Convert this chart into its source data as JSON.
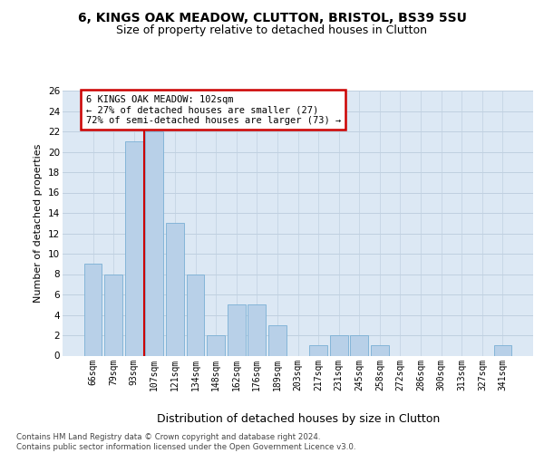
{
  "title1": "6, KINGS OAK MEADOW, CLUTTON, BRISTOL, BS39 5SU",
  "title2": "Size of property relative to detached houses in Clutton",
  "xlabel": "Distribution of detached houses by size in Clutton",
  "ylabel": "Number of detached properties",
  "categories": [
    "66sqm",
    "79sqm",
    "93sqm",
    "107sqm",
    "121sqm",
    "134sqm",
    "148sqm",
    "162sqm",
    "176sqm",
    "189sqm",
    "203sqm",
    "217sqm",
    "231sqm",
    "245sqm",
    "258sqm",
    "272sqm",
    "286sqm",
    "300sqm",
    "313sqm",
    "327sqm",
    "341sqm"
  ],
  "values": [
    9,
    8,
    21,
    22,
    13,
    8,
    2,
    5,
    5,
    3,
    0,
    1,
    2,
    2,
    1,
    0,
    0,
    0,
    0,
    0,
    1
  ],
  "bar_color": "#b8d0e8",
  "bar_edge_color": "#7aafd4",
  "red_line_x": 2.5,
  "annotation_text": "6 KINGS OAK MEADOW: 102sqm\n← 27% of detached houses are smaller (27)\n72% of semi-detached houses are larger (73) →",
  "annot_facecolor": "#ffffff",
  "annot_edgecolor": "#cc0000",
  "ylim_max": 26,
  "yticks": [
    0,
    2,
    4,
    6,
    8,
    10,
    12,
    14,
    16,
    18,
    20,
    22,
    24,
    26
  ],
  "grid_color": "#c0d0e0",
  "plot_bg": "#dce8f4",
  "footer": "Contains HM Land Registry data © Crown copyright and database right 2024.\nContains public sector information licensed under the Open Government Licence v3.0."
}
